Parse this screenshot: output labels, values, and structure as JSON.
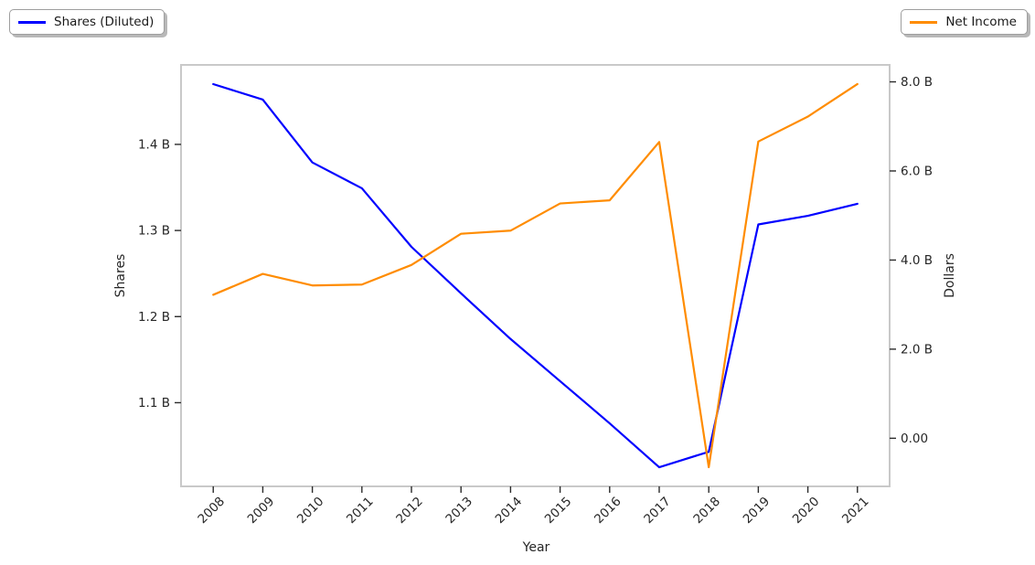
{
  "chart_data": {
    "type": "line",
    "title": "",
    "xlabel": "Year",
    "x": [
      2008,
      2009,
      2010,
      2011,
      2012,
      2013,
      2014,
      2015,
      2016,
      2017,
      2018,
      2019,
      2020,
      2021
    ],
    "xlim": [
      2007.35,
      2021.65
    ],
    "x_tick_rotation": 45,
    "grid": false,
    "series": [
      {
        "name": "Shares (Diluted)",
        "axis": "left",
        "color": "#0000ff",
        "values": [
          1.47,
          1.452,
          1.379,
          1.349,
          1.281,
          1.227,
          1.174,
          1.125,
          1.076,
          1.025,
          1.043,
          1.307,
          1.317,
          1.331
        ]
      },
      {
        "name": "Net Income",
        "axis": "right",
        "color": "#ff8c00",
        "values": [
          3.22,
          3.69,
          3.43,
          3.45,
          3.89,
          4.59,
          4.66,
          5.27,
          5.34,
          6.65,
          -0.65,
          6.66,
          7.22,
          7.95
        ]
      }
    ],
    "left_axis": {
      "label": "Shares",
      "unit": "B",
      "ylim": [
        1.0028,
        1.4923
      ],
      "ticks": [
        {
          "value": 1.1,
          "label": "1.1 B"
        },
        {
          "value": 1.2,
          "label": "1.2 B"
        },
        {
          "value": 1.3,
          "label": "1.3 B"
        },
        {
          "value": 1.4,
          "label": "1.4 B"
        }
      ]
    },
    "right_axis": {
      "label": "Dollars",
      "unit": "B",
      "ylim": [
        -1.08,
        8.38
      ],
      "ticks": [
        {
          "value": 0.0,
          "label": "0.00"
        },
        {
          "value": 2.0,
          "label": "2.0 B"
        },
        {
          "value": 4.0,
          "label": "4.0 B"
        },
        {
          "value": 6.0,
          "label": "6.0 B"
        },
        {
          "value": 8.0,
          "label": "8.0 B"
        }
      ]
    },
    "legend_positions": {
      "shares": "upper left",
      "net_income": "upper right"
    }
  },
  "style_colors": {
    "spine": "#c9c9c9",
    "tick": "#2b2b2b",
    "text": "#262626"
  }
}
